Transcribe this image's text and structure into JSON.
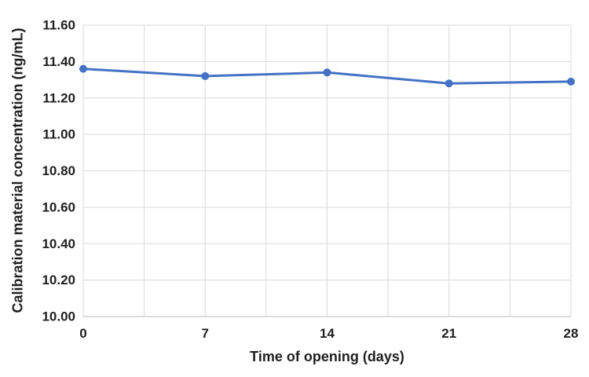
{
  "chart": {
    "y_axis_title": "Calibration material concentration (ng/mL)",
    "x_axis_title": "Time of opening (days)"
  },
  "chart_data": {
    "type": "line",
    "x": [
      0,
      7,
      14,
      21,
      28
    ],
    "values": [
      11.36,
      11.32,
      11.34,
      11.28,
      11.29
    ],
    "title": "",
    "xlabel": "Time of opening (days)",
    "ylabel": "Calibration material concentration (ng/mL)",
    "xlim": [
      0,
      28
    ],
    "ylim": [
      10.0,
      11.6
    ],
    "xticks": [
      0,
      7,
      14,
      21,
      28
    ],
    "ytick_step": 0.2,
    "ytick_decimals": 2,
    "x_gridline_step": 3.5,
    "grid": true,
    "legend_position": "none",
    "line_color": "#4472C4",
    "marker_color": "#4472C4",
    "gridline_color": "#D9D9D9",
    "axis_line_color": "#C6C6C6",
    "tick_label_color": "#1f1f1f"
  }
}
